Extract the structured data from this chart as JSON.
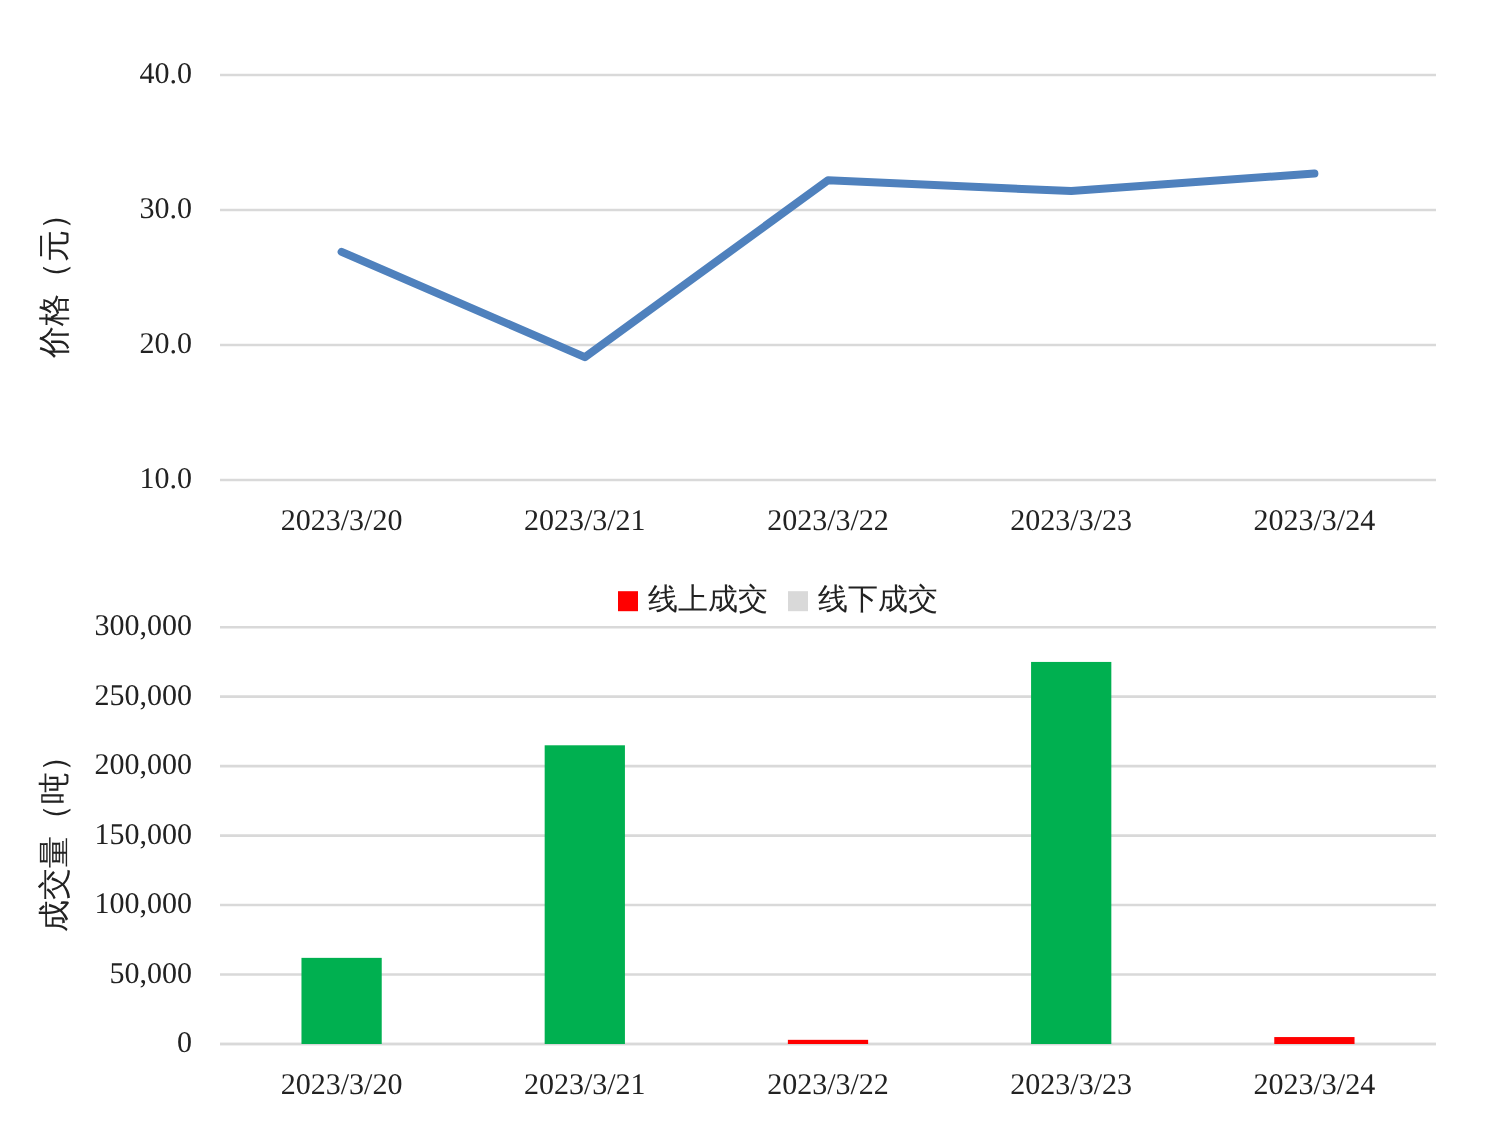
{
  "chart_data": [
    {
      "type": "line",
      "ylabel": "价格（元）",
      "categories": [
        "2023/3/20",
        "2023/3/21",
        "2023/3/22",
        "2023/3/23",
        "2023/3/24"
      ],
      "series": [
        {
          "color": "#4f81bd",
          "values": [
            26.9,
            19.1,
            32.2,
            31.4,
            32.7
          ]
        }
      ],
      "ylim": [
        10,
        40
      ],
      "yticks": [
        {
          "value": 10,
          "label": "10.0"
        },
        {
          "value": 20,
          "label": "20.0"
        },
        {
          "value": 30,
          "label": "30.0"
        },
        {
          "value": 40,
          "label": "40.0"
        }
      ],
      "grid": "y",
      "marker": "none"
    },
    {
      "type": "bar",
      "stacked": true,
      "ylabel": "成交量（吨）",
      "categories": [
        "2023/3/20",
        "2023/3/21",
        "2023/3/22",
        "2023/3/23",
        "2023/3/24"
      ],
      "series": [
        {
          "name": "线上成交",
          "color": "#ff0000",
          "values": [
            null,
            null,
            3000,
            null,
            5000
          ]
        },
        {
          "name": "线下成交",
          "color": "#d9d9d9",
          "values": [
            null,
            null,
            null,
            null,
            null
          ]
        },
        {
          "color": "#00b050",
          "values": [
            62000,
            215000,
            null,
            275000,
            null
          ]
        }
      ],
      "ylim": [
        0,
        300000
      ],
      "yticks": [
        0,
        {
          "value": 50000,
          "label": "50,000"
        },
        {
          "value": 100000,
          "label": "100,000"
        },
        {
          "value": 150000,
          "label": "150,000"
        },
        {
          "value": 200000,
          "label": "200,000"
        },
        {
          "value": 250000,
          "label": "250,000"
        },
        {
          "value": 300000,
          "label": "300,000"
        }
      ],
      "grid": "y",
      "legend": "top"
    }
  ]
}
